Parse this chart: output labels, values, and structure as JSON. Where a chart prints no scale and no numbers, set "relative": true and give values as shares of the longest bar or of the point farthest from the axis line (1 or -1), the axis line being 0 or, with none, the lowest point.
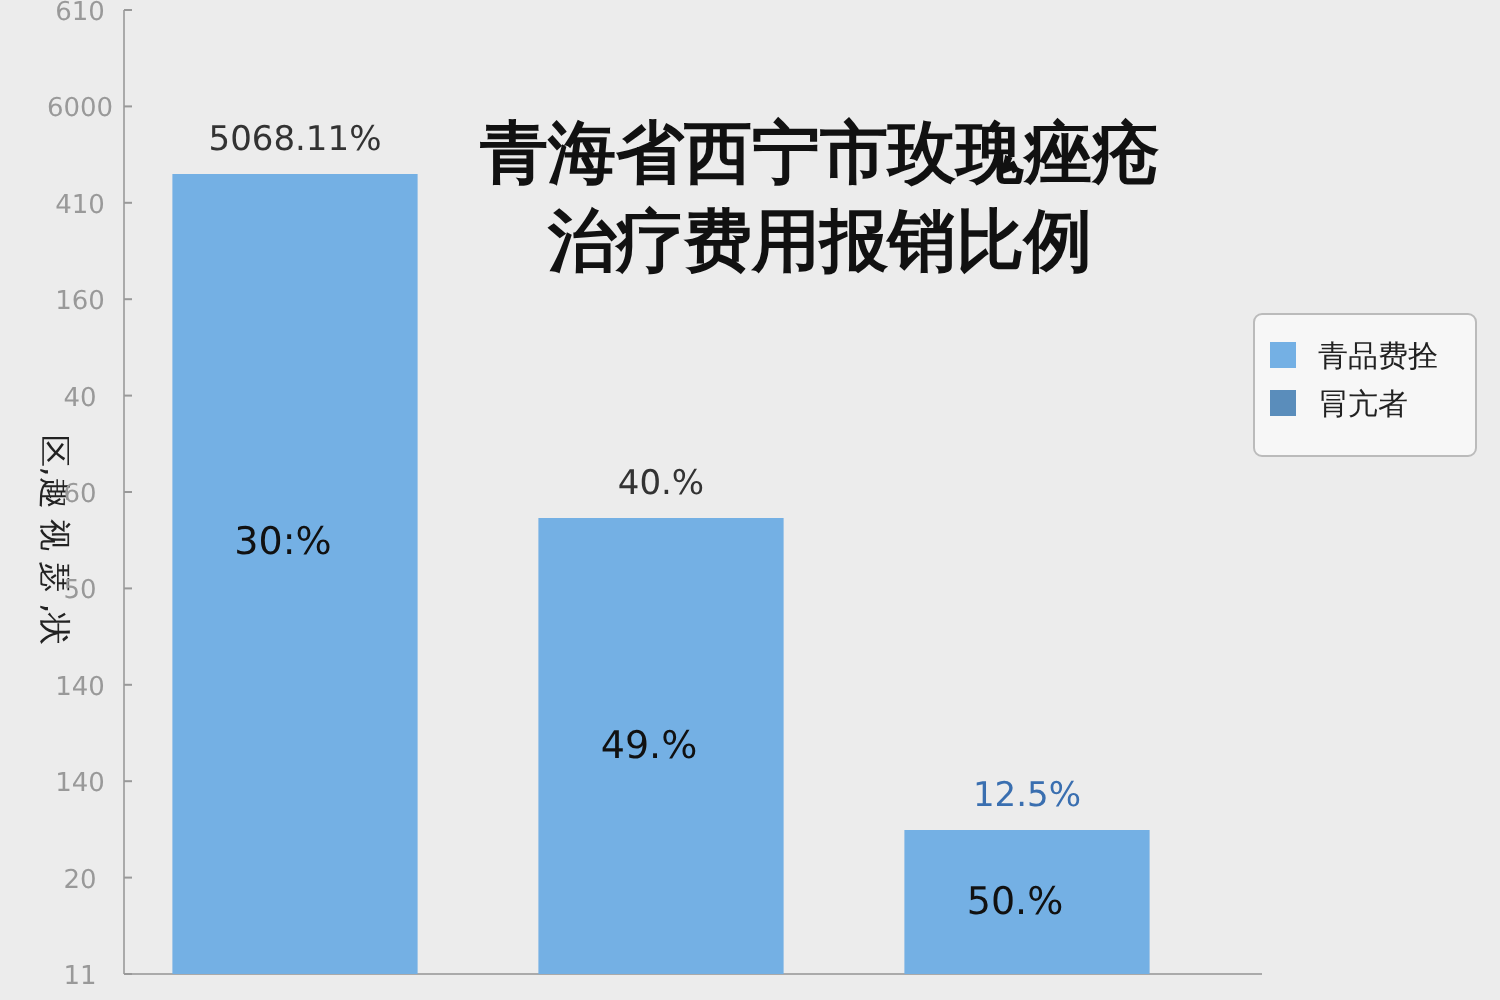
{
  "chart_data": {
    "type": "bar",
    "title": "青海省西宁市玫瑰痤疮治疗费用报销比例",
    "ylabel": "区,趣 视 瑟 ,状",
    "categories": [
      null,
      null,
      null
    ],
    "relative": true,
    "series": [
      {
        "name": "青品费拴",
        "color": "#74b0e4",
        "values": [
          1,
          0.57,
          0.18
        ]
      }
    ],
    "annotations": [
      "5068.11%",
      "40.%",
      "12.5%",
      "30:%",
      "49.%",
      "50.%",
      "11",
      "20",
      "140",
      "140",
      "50",
      "60",
      "40",
      "160",
      "410",
      "6000",
      "610",
      "冐亢者"
    ],
    "legend": "right"
  }
}
